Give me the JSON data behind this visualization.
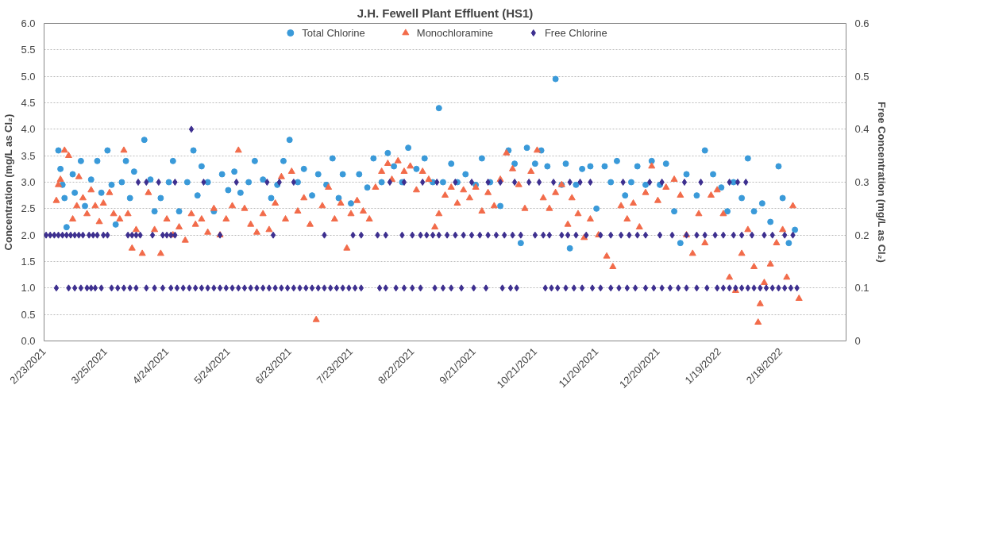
{
  "chart_data": {
    "type": "scatter",
    "title": "J.H. Fewell Plant Effluent (HS1)",
    "ylabel": "Concentration (mg/L as Cl₂)",
    "y2label": "Free Concentration (mg/L as Cl₂)",
    "xlim": [
      "2021-02-23",
      "2022-03-22"
    ],
    "xticks": [
      {
        "value": "2021-02-23",
        "label": "2/23/2021"
      },
      {
        "value": "2021-03-25",
        "label": "3/25/2021"
      },
      {
        "value": "2021-04-24",
        "label": "4/24/2021"
      },
      {
        "value": "2021-05-24",
        "label": "5/24/2021"
      },
      {
        "value": "2021-06-23",
        "label": "6/23/2021"
      },
      {
        "value": "2021-07-23",
        "label": "7/23/2021"
      },
      {
        "value": "2021-08-22",
        "label": "8/22/2021"
      },
      {
        "value": "2021-09-21",
        "label": "9/21/2021"
      },
      {
        "value": "2021-10-21",
        "label": "10/21/2021"
      },
      {
        "value": "2021-11-20",
        "label": "11/20/2021"
      },
      {
        "value": "2021-12-20",
        "label": "12/20/2021"
      },
      {
        "value": "2022-01-19",
        "label": "1/19/2022"
      },
      {
        "value": "2022-02-18",
        "label": "2/18/2022"
      }
    ],
    "ylim": [
      0,
      6
    ],
    "yticks": [
      {
        "value": 0,
        "label": "0.0"
      },
      0.5,
      {
        "value": 1,
        "label": "1.0"
      },
      1.5,
      {
        "value": 2,
        "label": "2.0"
      },
      2.5,
      {
        "value": 3,
        "label": "3.0"
      },
      3.5,
      {
        "value": 4,
        "label": "4.0"
      },
      4.5,
      {
        "value": 5,
        "label": "5.0"
      },
      5.5,
      {
        "value": 6,
        "label": "6.0"
      }
    ],
    "y2lim": [
      0,
      0.6
    ],
    "y2ticks": [
      0,
      0.1,
      0.2,
      0.3,
      0.4,
      0.5,
      0.6
    ],
    "grid": "y",
    "legend": "top",
    "series": [
      {
        "name": "Total Chlorine",
        "color": "#3a9ad9",
        "marker": "circle",
        "x": [
          "2021-03-02",
          "2021-03-03",
          "2021-03-04",
          "2021-03-05",
          "2021-03-06",
          "2021-03-09",
          "2021-03-10",
          "2021-03-13",
          "2021-03-15",
          "2021-03-18",
          "2021-03-21",
          "2021-03-23",
          "2021-03-26",
          "2021-03-28",
          "2021-03-30",
          "2021-04-02",
          "2021-04-04",
          "2021-04-06",
          "2021-04-08",
          "2021-04-13",
          "2021-04-16",
          "2021-04-18",
          "2021-04-21",
          "2021-04-25",
          "2021-04-27",
          "2021-04-30",
          "2021-05-04",
          "2021-05-07",
          "2021-05-09",
          "2021-05-11",
          "2021-05-14",
          "2021-05-17",
          "2021-05-21",
          "2021-05-24",
          "2021-05-27",
          "2021-05-30",
          "2021-06-03",
          "2021-06-06",
          "2021-06-10",
          "2021-06-14",
          "2021-06-17",
          "2021-06-20",
          "2021-06-23",
          "2021-06-27",
          "2021-06-30",
          "2021-07-04",
          "2021-07-07",
          "2021-07-11",
          "2021-07-14",
          "2021-07-17",
          "2021-07-19",
          "2021-07-23",
          "2021-07-27",
          "2021-07-31",
          "2021-08-03",
          "2021-08-07",
          "2021-08-10",
          "2021-08-13",
          "2021-08-17",
          "2021-08-20",
          "2021-08-24",
          "2021-08-28",
          "2021-09-01",
          "2021-09-04",
          "2021-09-06",
          "2021-09-10",
          "2021-09-13",
          "2021-09-17",
          "2021-09-22",
          "2021-09-25",
          "2021-09-29",
          "2021-10-04",
          "2021-10-08",
          "2021-10-11",
          "2021-10-14",
          "2021-10-17",
          "2021-10-21",
          "2021-10-24",
          "2021-10-27",
          "2021-10-31",
          "2021-11-03",
          "2021-11-05",
          "2021-11-07",
          "2021-11-10",
          "2021-11-13",
          "2021-11-17",
          "2021-11-20",
          "2021-11-24",
          "2021-11-27",
          "2021-11-30",
          "2021-12-04",
          "2021-12-07",
          "2021-12-10",
          "2021-12-14",
          "2021-12-17",
          "2021-12-21",
          "2021-12-24",
          "2021-12-28",
          "2021-12-31",
          "2022-01-03",
          "2022-01-08",
          "2022-01-12",
          "2022-01-16",
          "2022-01-20",
          "2022-01-23",
          "2022-01-26",
          "2022-01-30",
          "2022-02-02",
          "2022-02-05",
          "2022-02-09",
          "2022-02-13",
          "2022-02-17",
          "2022-02-19",
          "2022-02-22",
          "2022-02-25"
        ],
        "values": [
          3.6,
          3.25,
          2.95,
          2.7,
          2.15,
          3.15,
          2.8,
          3.4,
          2.55,
          3.05,
          3.4,
          2.8,
          3.6,
          2.95,
          2.2,
          3.0,
          3.4,
          2.7,
          3.2,
          3.8,
          3.05,
          2.45,
          2.7,
          3.0,
          3.4,
          2.45,
          3.0,
          3.6,
          2.75,
          3.3,
          3.0,
          2.45,
          3.15,
          2.85,
          3.2,
          2.8,
          3.0,
          3.4,
          3.05,
          2.7,
          2.95,
          3.4,
          3.8,
          3.0,
          3.25,
          2.75,
          3.15,
          2.95,
          3.45,
          2.7,
          3.15,
          2.6,
          3.15,
          2.9,
          3.45,
          3.0,
          3.55,
          3.3,
          3.0,
          3.65,
          3.25,
          3.45,
          3.0,
          4.4,
          3.0,
          3.35,
          3.0,
          3.15,
          2.95,
          3.45,
          3.0,
          2.55,
          3.6,
          3.35,
          1.85,
          3.65,
          3.35,
          3.6,
          3.3,
          4.95,
          2.95,
          3.35,
          1.75,
          2.95,
          3.25,
          3.3,
          2.5,
          3.3,
          3.0,
          3.4,
          2.75,
          3.0,
          3.3,
          2.95,
          3.4,
          2.95,
          3.35,
          2.45,
          1.85,
          3.15,
          2.75,
          3.6,
          3.15,
          2.9,
          2.45,
          3.0,
          2.7,
          3.45,
          2.45,
          2.6,
          2.25,
          3.3,
          2.7,
          1.85,
          2.1
        ]
      },
      {
        "name": "Monochloramine",
        "color": "#f26b4a",
        "marker": "triangle",
        "x": [
          "2021-03-01",
          "2021-03-02",
          "2021-03-03",
          "2021-03-05",
          "2021-03-07",
          "2021-03-09",
          "2021-03-11",
          "2021-03-12",
          "2021-03-14",
          "2021-03-16",
          "2021-03-18",
          "2021-03-20",
          "2021-03-22",
          "2021-03-24",
          "2021-03-27",
          "2021-03-29",
          "2021-04-01",
          "2021-04-03",
          "2021-04-05",
          "2021-04-07",
          "2021-04-09",
          "2021-04-12",
          "2021-04-15",
          "2021-04-18",
          "2021-04-21",
          "2021-04-24",
          "2021-04-27",
          "2021-04-30",
          "2021-05-03",
          "2021-05-06",
          "2021-05-08",
          "2021-05-11",
          "2021-05-14",
          "2021-05-17",
          "2021-05-20",
          "2021-05-23",
          "2021-05-26",
          "2021-05-29",
          "2021-06-01",
          "2021-06-04",
          "2021-06-07",
          "2021-06-10",
          "2021-06-13",
          "2021-06-16",
          "2021-06-19",
          "2021-06-21",
          "2021-06-24",
          "2021-06-27",
          "2021-06-30",
          "2021-07-03",
          "2021-07-06",
          "2021-07-09",
          "2021-07-12",
          "2021-07-15",
          "2021-07-18",
          "2021-07-21",
          "2021-07-23",
          "2021-07-26",
          "2021-07-29",
          "2021-08-01",
          "2021-08-04",
          "2021-08-07",
          "2021-08-10",
          "2021-08-12",
          "2021-08-15",
          "2021-08-18",
          "2021-08-21",
          "2021-08-24",
          "2021-08-27",
          "2021-08-30",
          "2021-09-02",
          "2021-09-04",
          "2021-09-07",
          "2021-09-10",
          "2021-09-13",
          "2021-09-16",
          "2021-09-19",
          "2021-09-22",
          "2021-09-25",
          "2021-09-28",
          "2021-10-01",
          "2021-10-04",
          "2021-10-07",
          "2021-10-10",
          "2021-10-13",
          "2021-10-16",
          "2021-10-19",
          "2021-10-22",
          "2021-10-25",
          "2021-10-28",
          "2021-10-31",
          "2021-11-03",
          "2021-11-06",
          "2021-11-08",
          "2021-11-11",
          "2021-11-14",
          "2021-11-17",
          "2021-11-21",
          "2021-11-25",
          "2021-11-28",
          "2021-12-02",
          "2021-12-05",
          "2021-12-08",
          "2021-12-11",
          "2021-12-14",
          "2021-12-17",
          "2021-12-20",
          "2021-12-24",
          "2021-12-28",
          "2021-12-31",
          "2022-01-03",
          "2022-01-06",
          "2022-01-09",
          "2022-01-12",
          "2022-01-15",
          "2022-01-18",
          "2022-01-21",
          "2022-01-24",
          "2022-01-27",
          "2022-01-30",
          "2022-02-02",
          "2022-02-05",
          "2022-02-07",
          "2022-02-08",
          "2022-02-10",
          "2022-02-13",
          "2022-02-16",
          "2022-02-19",
          "2022-02-21",
          "2022-02-24",
          "2022-02-27"
        ],
        "values": [
          2.65,
          2.95,
          3.05,
          3.6,
          3.5,
          2.3,
          2.55,
          3.1,
          2.7,
          2.4,
          2.85,
          2.55,
          2.25,
          2.6,
          2.8,
          2.4,
          2.3,
          3.6,
          2.4,
          1.75,
          2.1,
          1.65,
          2.8,
          2.1,
          1.65,
          2.3,
          2.0,
          2.15,
          1.9,
          2.4,
          2.2,
          2.3,
          2.05,
          2.5,
          2.0,
          2.3,
          2.55,
          3.6,
          2.5,
          2.2,
          2.05,
          2.4,
          2.1,
          2.6,
          3.1,
          2.3,
          3.2,
          2.45,
          2.7,
          2.2,
          0.4,
          2.55,
          2.9,
          2.3,
          2.6,
          1.75,
          2.4,
          2.65,
          2.45,
          2.3,
          2.9,
          3.2,
          3.35,
          3.05,
          3.4,
          3.2,
          3.3,
          2.85,
          3.2,
          3.05,
          2.15,
          2.4,
          2.75,
          2.9,
          2.6,
          2.85,
          2.7,
          2.9,
          2.45,
          2.8,
          2.55,
          3.05,
          3.55,
          3.25,
          2.95,
          2.5,
          3.2,
          3.6,
          2.7,
          2.5,
          2.8,
          2.95,
          2.2,
          2.7,
          2.4,
          1.95,
          2.3,
          2.0,
          1.6,
          1.4,
          2.55,
          2.3,
          2.6,
          2.15,
          2.8,
          3.3,
          2.65,
          2.9,
          3.05,
          2.75,
          2.0,
          1.65,
          2.4,
          1.85,
          2.75,
          2.85,
          2.4,
          1.2,
          0.95,
          1.65,
          2.1,
          1.4,
          0.35,
          0.7,
          1.1,
          1.45,
          1.85,
          2.1,
          1.2,
          2.55,
          0.8
        ]
      },
      {
        "name": "Free Chlorine",
        "color": "#3d2f8f",
        "marker": "diamond",
        "axis": "y2",
        "x": [
          "2021-02-24",
          "2021-02-26",
          "2021-02-28",
          "2021-03-02",
          "2021-03-04",
          "2021-03-06",
          "2021-03-08",
          "2021-03-10",
          "2021-03-12",
          "2021-03-14",
          "2021-03-17",
          "2021-03-19",
          "2021-03-21",
          "2021-03-24",
          "2021-03-26",
          "2021-04-05",
          "2021-04-07",
          "2021-04-09",
          "2021-04-11",
          "2021-04-17",
          "2021-04-22",
          "2021-04-24",
          "2021-04-26",
          "2021-04-28",
          "2021-05-20",
          "2021-06-15",
          "2021-07-10",
          "2021-07-24",
          "2021-07-28",
          "2021-08-05",
          "2021-08-09",
          "2021-08-17",
          "2021-08-22",
          "2021-08-26",
          "2021-08-29",
          "2021-09-01",
          "2021-09-04",
          "2021-09-08",
          "2021-09-12",
          "2021-09-16",
          "2021-09-20",
          "2021-09-24",
          "2021-09-28",
          "2021-10-02",
          "2021-10-06",
          "2021-10-10",
          "2021-10-14",
          "2021-10-21",
          "2021-10-25",
          "2021-10-28",
          "2021-11-03",
          "2021-11-06",
          "2021-11-10",
          "2021-11-15",
          "2021-11-22",
          "2021-11-27",
          "2021-12-02",
          "2021-12-06",
          "2021-12-10",
          "2021-12-14",
          "2021-12-21",
          "2021-12-27",
          "2022-01-03",
          "2022-01-08",
          "2022-01-12",
          "2022-01-17",
          "2022-01-21",
          "2022-01-26",
          "2022-01-30",
          "2022-02-04",
          "2022-02-10",
          "2022-02-14",
          "2022-02-20",
          "2022-02-24",
          "2021-04-10",
          "2021-04-14",
          "2021-04-20",
          "2021-04-28",
          "2021-05-12",
          "2021-05-28",
          "2021-06-12",
          "2021-06-18",
          "2021-06-25",
          "2021-08-11",
          "2021-08-18",
          "2021-08-27",
          "2021-09-03",
          "2021-09-12",
          "2021-09-20",
          "2021-09-28",
          "2021-10-04",
          "2021-10-11",
          "2021-10-18",
          "2021-10-23",
          "2021-10-30",
          "2021-11-07",
          "2021-11-12",
          "2021-11-17",
          "2021-12-03",
          "2021-12-16",
          "2021-12-22",
          "2022-01-02",
          "2022-01-10",
          "2022-01-24",
          "2022-01-28",
          "2022-02-01",
          "2021-05-06",
          "2021-03-01",
          "2021-03-07",
          "2021-03-10",
          "2021-03-13",
          "2021-03-16",
          "2021-03-18",
          "2021-03-20",
          "2021-03-23",
          "2021-03-28",
          "2021-03-31",
          "2021-04-03",
          "2021-04-06",
          "2021-04-09",
          "2021-04-14",
          "2021-04-18",
          "2021-04-22",
          "2021-04-26",
          "2021-04-29",
          "2021-05-02",
          "2021-05-05",
          "2021-05-08",
          "2021-05-11",
          "2021-05-14",
          "2021-05-17",
          "2021-05-20",
          "2021-05-23",
          "2021-05-26",
          "2021-05-29",
          "2021-06-01",
          "2021-06-04",
          "2021-06-07",
          "2021-06-10",
          "2021-06-13",
          "2021-06-16",
          "2021-06-19",
          "2021-06-22",
          "2021-06-25",
          "2021-06-28",
          "2021-07-01",
          "2021-07-04",
          "2021-07-07",
          "2021-07-10",
          "2021-07-13",
          "2021-07-16",
          "2021-07-19",
          "2021-07-22",
          "2021-07-25",
          "2021-07-28",
          "2021-08-06",
          "2021-08-09",
          "2021-08-14",
          "2021-08-18",
          "2021-08-22",
          "2021-08-26",
          "2021-09-02",
          "2021-09-06",
          "2021-09-10",
          "2021-09-15",
          "2021-09-21",
          "2021-09-27",
          "2021-10-05",
          "2021-10-09",
          "2021-10-12",
          "2021-10-26",
          "2021-10-29",
          "2021-11-01",
          "2021-11-05",
          "2021-11-09",
          "2021-11-13",
          "2021-11-18",
          "2021-11-22",
          "2021-11-27",
          "2021-12-01",
          "2021-12-05",
          "2021-12-09",
          "2021-12-14",
          "2021-12-18",
          "2021-12-22",
          "2021-12-26",
          "2021-12-30",
          "2022-01-03",
          "2022-01-08",
          "2022-01-13",
          "2022-01-18",
          "2022-01-21",
          "2022-01-24",
          "2022-01-27",
          "2022-01-30",
          "2022-02-02",
          "2022-02-05",
          "2022-02-08",
          "2022-02-11",
          "2022-02-14",
          "2022-02-17",
          "2022-02-20",
          "2022-02-23",
          "2022-02-26"
        ],
        "values": [
          0.2,
          0.2,
          0.2,
          0.2,
          0.2,
          0.2,
          0.2,
          0.2,
          0.2,
          0.2,
          0.2,
          0.2,
          0.2,
          0.2,
          0.2,
          0.2,
          0.2,
          0.2,
          0.2,
          0.2,
          0.2,
          0.2,
          0.2,
          0.2,
          0.2,
          0.2,
          0.2,
          0.2,
          0.2,
          0.2,
          0.2,
          0.2,
          0.2,
          0.2,
          0.2,
          0.2,
          0.2,
          0.2,
          0.2,
          0.2,
          0.2,
          0.2,
          0.2,
          0.2,
          0.2,
          0.2,
          0.2,
          0.2,
          0.2,
          0.2,
          0.2,
          0.2,
          0.2,
          0.2,
          0.2,
          0.2,
          0.2,
          0.2,
          0.2,
          0.2,
          0.2,
          0.2,
          0.2,
          0.2,
          0.2,
          0.2,
          0.2,
          0.2,
          0.2,
          0.2,
          0.2,
          0.2,
          0.2,
          0.2,
          0.3,
          0.3,
          0.3,
          0.3,
          0.3,
          0.3,
          0.3,
          0.3,
          0.3,
          0.3,
          0.3,
          0.3,
          0.3,
          0.3,
          0.3,
          0.3,
          0.3,
          0.3,
          0.3,
          0.3,
          0.3,
          0.3,
          0.3,
          0.3,
          0.3,
          0.3,
          0.3,
          0.3,
          0.3,
          0.3,
          0.3,
          0.3,
          0.4,
          0.1,
          0.1,
          0.1,
          0.1,
          0.1,
          0.1,
          0.1,
          0.1,
          0.1,
          0.1,
          0.1,
          0.1,
          0.1,
          0.1,
          0.1,
          0.1,
          0.1,
          0.1,
          0.1,
          0.1,
          0.1,
          0.1,
          0.1,
          0.1,
          0.1,
          0.1,
          0.1,
          0.1,
          0.1,
          0.1,
          0.1,
          0.1,
          0.1,
          0.1,
          0.1,
          0.1,
          0.1,
          0.1,
          0.1,
          0.1,
          0.1,
          0.1,
          0.1,
          0.1,
          0.1,
          0.1,
          0.1,
          0.1,
          0.1,
          0.1,
          0.1,
          0.1,
          0.1,
          0.1,
          0.1,
          0.1,
          0.1,
          0.1,
          0.1,
          0.1,
          0.1,
          0.1,
          0.1,
          0.1,
          0.1,
          0.1,
          0.1,
          0.1,
          0.1,
          0.1,
          0.1,
          0.1,
          0.1,
          0.1,
          0.1,
          0.1,
          0.1,
          0.1,
          0.1,
          0.1,
          0.1,
          0.1,
          0.1,
          0.1,
          0.1,
          0.1,
          0.1,
          0.1,
          0.1,
          0.1,
          0.1,
          0.1,
          0.1,
          0.1,
          0.1,
          0.1,
          0.1
        ]
      }
    ]
  }
}
